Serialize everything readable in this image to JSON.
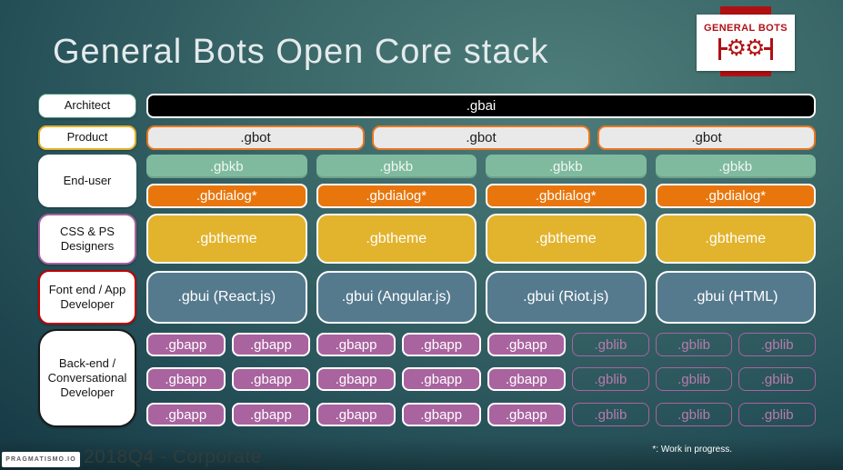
{
  "slide": {
    "title": "General Bots Open Core stack",
    "footer": {
      "brand_badge": "PRAGMATISMO.IO",
      "left_text": "2018Q4 - Corporate",
      "right_note": "*: Work in progress."
    }
  },
  "logo": {
    "brand": "GENERAL BOTS",
    "gear_icon": "⚙"
  },
  "sidebar_labels": [
    {
      "id": "architect",
      "label": "Architect"
    },
    {
      "id": "product",
      "label": "Product"
    },
    {
      "id": "end-user",
      "label": "End-user"
    },
    {
      "id": "css-ps-designers",
      "label": "CSS & PS Designers"
    },
    {
      "id": "frontend-app-developer",
      "label": "Font end / App Developer"
    },
    {
      "id": "backend-conversational-developer",
      "label": "Back-end / Conversational Developer"
    }
  ],
  "stack": {
    "gbai": ".gbai",
    "gbot": [
      ".gbot",
      ".gbot",
      ".gbot"
    ],
    "gbkb": [
      ".gbkb",
      ".gbkb",
      ".gbkb",
      ".gbkb"
    ],
    "gbdialog": [
      ".gbdialog*",
      ".gbdialog*",
      ".gbdialog*",
      ".gbdialog*"
    ],
    "gbtheme": [
      ".gbtheme",
      ".gbtheme",
      ".gbtheme",
      ".gbtheme"
    ],
    "gbui": [
      ".gbui (React.js)",
      ".gbui (Angular.js)",
      ".gbui (Riot.js)",
      ".gbui (HTML)"
    ],
    "backend_rows": [
      [
        ".gbapp",
        ".gbapp",
        ".gbapp",
        ".gbapp",
        ".gbapp",
        ".gblib",
        ".gblib",
        ".gblib"
      ],
      [
        ".gbapp",
        ".gbapp",
        ".gbapp",
        ".gbapp",
        ".gbapp",
        ".gblib",
        ".gblib",
        ".gblib"
      ],
      [
        ".gbapp",
        ".gbapp",
        ".gbapp",
        ".gbapp",
        ".gbapp",
        ".gblib",
        ".gblib",
        ".gblib"
      ]
    ]
  },
  "colors": {
    "background_dark": "#112e38",
    "background_light": "#4d7d7a",
    "gbai_fill": "#000000",
    "gbot_fill": "#e9e9e9",
    "gbot_border": "#e87722",
    "gbkb_fill": "#7fba9e",
    "gbdialog_fill": "#e8760d",
    "gbtheme_fill": "#e2b32c",
    "gbui_fill": "#557a8e",
    "gbapp_fill": "#a9639f",
    "gblib_border": "#a9639f",
    "logo_red": "#b01014",
    "architect_border": "#4a9380",
    "product_border": "#e2b32c",
    "css_ps_border": "#a9629f",
    "frontend_border": "#c00000",
    "backend_border": "#1a1a1a"
  }
}
